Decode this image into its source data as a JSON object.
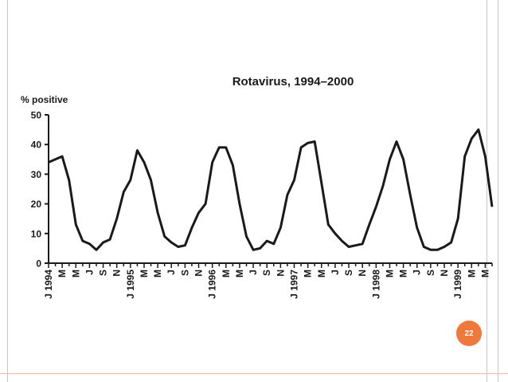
{
  "slide": {
    "page_number": "22",
    "accent_color": "#f07838",
    "border_color": "#f0b8a8"
  },
  "chart_data": {
    "type": "line",
    "title": "Rotavirus, 1994–2000",
    "xlabel": "",
    "ylabel": "% positive",
    "ylim": [
      0,
      50
    ],
    "yticks": [
      0,
      10,
      20,
      30,
      40,
      50
    ],
    "grid": false,
    "line_color": "#1a1a1a",
    "x_tick_labels": [
      "J 1994",
      "M",
      "M",
      "J",
      "S",
      "N",
      "J 1995",
      "M",
      "M",
      "J",
      "S",
      "N",
      "J 1996",
      "M",
      "M",
      "J",
      "S",
      "N",
      "J 1997",
      "M",
      "M",
      "J",
      "S",
      "N",
      "J 1998",
      "M",
      "M",
      "J",
      "S",
      "N",
      "J 1999",
      "M",
      "M"
    ],
    "series": [
      {
        "values": [
          34,
          35,
          36,
          28,
          13,
          7.5,
          6.5,
          4.5,
          7,
          8,
          15,
          24,
          28,
          38,
          34,
          28,
          17,
          9,
          7,
          5.5,
          6,
          12,
          17,
          20,
          34,
          39,
          39,
          33,
          20,
          9,
          4.5,
          5,
          7.5,
          6.5,
          12,
          23,
          28,
          39,
          40.5,
          41,
          27,
          13,
          10,
          7.5,
          5.5,
          6,
          6.5,
          13,
          19,
          26,
          35,
          41,
          35,
          23,
          12,
          5.5,
          4.5,
          4.5,
          5.5,
          7,
          15,
          36,
          42,
          45,
          36,
          19
        ]
      }
    ]
  }
}
